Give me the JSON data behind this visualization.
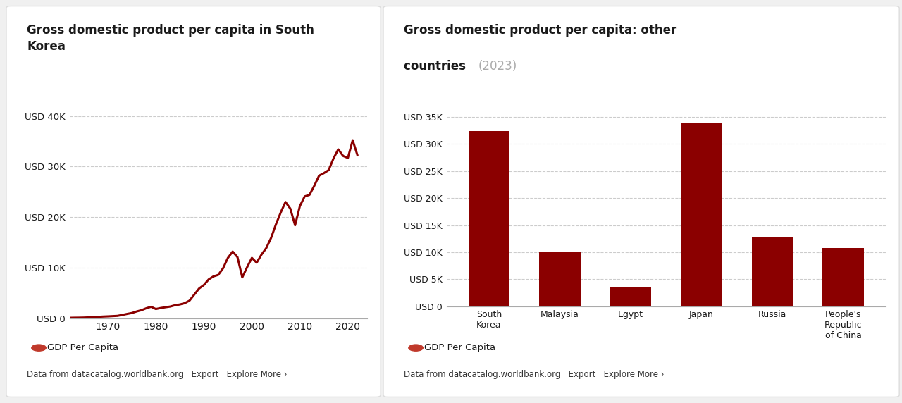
{
  "line_chart": {
    "title_line1": "Gross domestic product per capita in South",
    "title_line2": "Korea",
    "years": [
      1962,
      1963,
      1964,
      1965,
      1966,
      1967,
      1968,
      1969,
      1970,
      1971,
      1972,
      1973,
      1974,
      1975,
      1976,
      1977,
      1978,
      1979,
      1980,
      1981,
      1982,
      1983,
      1984,
      1985,
      1986,
      1987,
      1988,
      1989,
      1990,
      1991,
      1992,
      1993,
      1994,
      1995,
      1996,
      1997,
      1998,
      1999,
      2000,
      2001,
      2002,
      2003,
      2004,
      2005,
      2006,
      2007,
      2008,
      2009,
      2010,
      2011,
      2012,
      2013,
      2014,
      2015,
      2016,
      2017,
      2018,
      2019,
      2020,
      2021,
      2022
    ],
    "values": [
      110,
      130,
      140,
      160,
      200,
      240,
      300,
      360,
      400,
      450,
      500,
      680,
      880,
      1060,
      1370,
      1620,
      2000,
      2290,
      1849,
      2050,
      2200,
      2340,
      2600,
      2750,
      3000,
      3500,
      4700,
      5900,
      6600,
      7700,
      8300,
      8600,
      9900,
      11950,
      13200,
      12100,
      8100,
      10100,
      11950,
      11000,
      12600,
      13900,
      15900,
      18550,
      20900,
      23000,
      21700,
      18400,
      22200,
      24100,
      24400,
      26200,
      28200,
      28700,
      29300,
      31600,
      33400,
      32100,
      31700,
      35200,
      32200
    ],
    "line_color": "#8B0000",
    "yticks": [
      0,
      10000,
      20000,
      30000,
      40000
    ],
    "ytick_labels": [
      "USD 0",
      "USD 10K",
      "USD 20K",
      "USD 30K",
      "USD 40K"
    ],
    "xticks": [
      1970,
      1980,
      1990,
      2000,
      2010,
      2020
    ],
    "ylim": [
      0,
      43000
    ],
    "xlim": [
      1962,
      2024
    ],
    "legend_label": "GDP Per Capita",
    "footer": "Data from datacatalog.worldbank.org   Export   Explore More ›"
  },
  "bar_chart": {
    "title_main": "Gross domestic product per capita: other\ncountries ",
    "title_year": "(2023)",
    "countries": [
      "South\nKorea",
      "Malaysia",
      "Egypt",
      "Japan",
      "Russia",
      "People's\nRepublic\nof China"
    ],
    "values": [
      32400,
      10000,
      3500,
      33800,
      12700,
      10760
    ],
    "bar_color": "#8B0000",
    "yticks": [
      0,
      5000,
      10000,
      15000,
      20000,
      25000,
      30000,
      35000
    ],
    "ytick_labels": [
      "USD 0",
      "USD 5K",
      "USD 10K",
      "USD 15K",
      "USD 20K",
      "USD 25K",
      "USD 30K",
      "USD 35K"
    ],
    "ylim": [
      0,
      38000
    ],
    "legend_label": "GDP Per Capita",
    "footer": "Data from datacatalog.worldbank.org   Export   Explore More ›"
  },
  "bg_color": "#f0f0f0",
  "panel_bg": "#ffffff",
  "text_color": "#1a1a1a",
  "grid_color": "#cccccc",
  "subtitle_color": "#aaaaaa",
  "legend_dot_color": "#c0392b",
  "footer_color": "#333333",
  "panel_edge_color": "#dddddd"
}
